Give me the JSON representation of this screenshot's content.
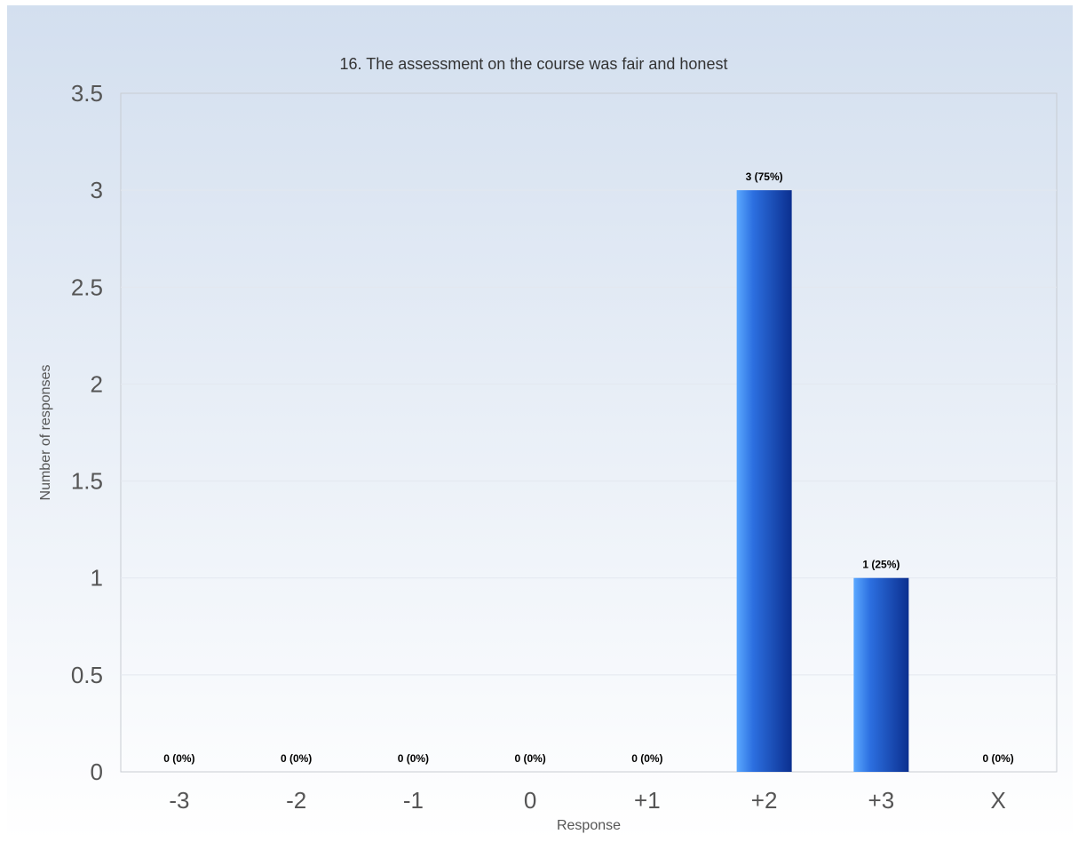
{
  "chart_data": {
    "type": "bar",
    "title": "16. The assessment on the course was fair and honest",
    "xlabel": "Response",
    "ylabel": "Number of responses",
    "categories": [
      "-3",
      "-2",
      "-1",
      "0",
      "+1",
      "+2",
      "+3",
      "X"
    ],
    "values": [
      0,
      0,
      0,
      0,
      0,
      3,
      1,
      0
    ],
    "data_labels": [
      "0 (0%)",
      "0 (0%)",
      "0 (0%)",
      "0 (0%)",
      "0 (0%)",
      "3 (75%)",
      "1 (25%)",
      "0 (0%)"
    ],
    "yticks": [
      "0",
      "0.5",
      "1",
      "1.5",
      "2",
      "2.5",
      "3",
      "3.5"
    ],
    "ylim": [
      0,
      3.5
    ],
    "grid": true,
    "legend": "none",
    "colors": {
      "bar_light": "#5aa8ff",
      "bar_mid": "#2c6fe0",
      "bar_dark": "#0b2f8f",
      "background_top": "#d3dfef",
      "background_bottom": "#ffffff",
      "text": "#555555",
      "data_label": "#000000",
      "grid": "#e3e8ef",
      "axis": "#c8ccd2"
    }
  }
}
